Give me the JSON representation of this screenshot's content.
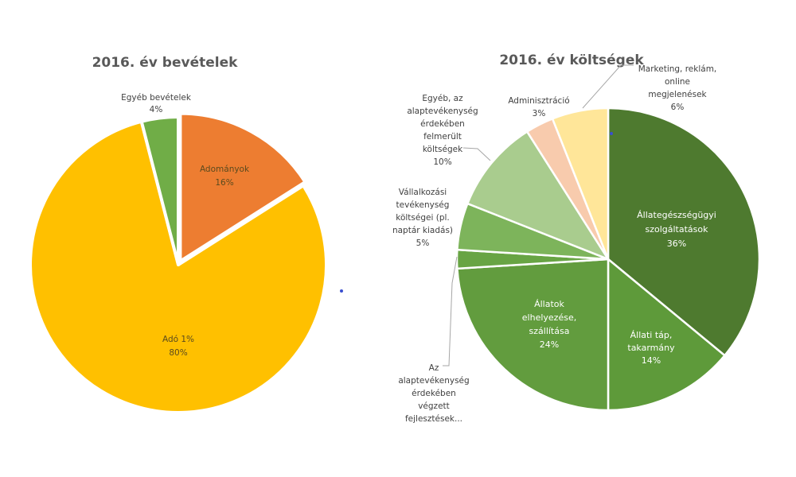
{
  "chart_data": [
    {
      "type": "pie",
      "title": "2016. év bevételek",
      "slices": [
        {
          "label": "Adományok",
          "value": 16,
          "pct_label": "16%",
          "color": "#ED7D31",
          "label_style": "inside-dark",
          "exploded": true
        },
        {
          "label": "Adó 1%",
          "value": 80,
          "pct_label": "80%",
          "color": "#FFC000",
          "label_style": "inside-dark",
          "exploded": false
        },
        {
          "label": "Egyéb bevételek",
          "value": 4,
          "pct_label": "4%",
          "color": "#70AD47",
          "label_style": "outside",
          "exploded": false
        }
      ]
    },
    {
      "type": "pie",
      "title": "2016. év költségek",
      "slices": [
        {
          "label": "Állategészségügyi szolgáltatások",
          "lines": [
            "Állategészségügyi",
            "szolgáltatások"
          ],
          "value": 36,
          "pct_label": "36%",
          "color": "#4E7A2F",
          "label_style": "inside-white"
        },
        {
          "label": "Állati táp, takarmány",
          "lines": [
            "Állati táp,",
            "takarmány"
          ],
          "value": 14,
          "pct_label": "14%",
          "color": "#5E9A3A",
          "label_style": "inside-white"
        },
        {
          "label": "Állatok elhelyezése, szállítása",
          "lines": [
            "Állatok",
            "elhelyezése,",
            "szállítása"
          ],
          "value": 24,
          "pct_label": "24%",
          "color": "#629C3E",
          "label_style": "inside-white"
        },
        {
          "label": "Az alaptevékenység érdekében végzett fejlesztések...",
          "lines": [
            "Az",
            "alaptevékenység",
            "érdekében",
            "végzett",
            "fejlesztések..."
          ],
          "value": 2,
          "pct_label": "",
          "color": "#68A444",
          "label_style": "outside"
        },
        {
          "label": "Vállalkozási tevékenység költségei (pl. naptár kiadás)",
          "lines": [
            "Vállalkozási",
            "tevékenység",
            "költségei (pl.",
            "naptár kiadás)"
          ],
          "value": 5,
          "pct_label": "5%",
          "color": "#7DB45B",
          "label_style": "outside"
        },
        {
          "label": "Egyéb, az alaptevékenység érdekében felmerült költségek",
          "lines": [
            "Egyéb, az",
            "alaptevékenység",
            "érdekében",
            "felmerült",
            "költségek"
          ],
          "value": 10,
          "pct_label": "10%",
          "color": "#A9CC8E",
          "label_style": "outside"
        },
        {
          "label": "Adminisztráció",
          "lines": [
            "Adminisztráció"
          ],
          "value": 3,
          "pct_label": "3%",
          "color": "#F8CBAD",
          "label_style": "outside"
        },
        {
          "label": "Marketing, reklám, online megjelenések",
          "lines": [
            "Marketing, reklám,",
            "online",
            "megjelenések"
          ],
          "value": 6,
          "pct_label": "6%",
          "color": "#FFE699",
          "label_style": "outside"
        }
      ]
    }
  ]
}
